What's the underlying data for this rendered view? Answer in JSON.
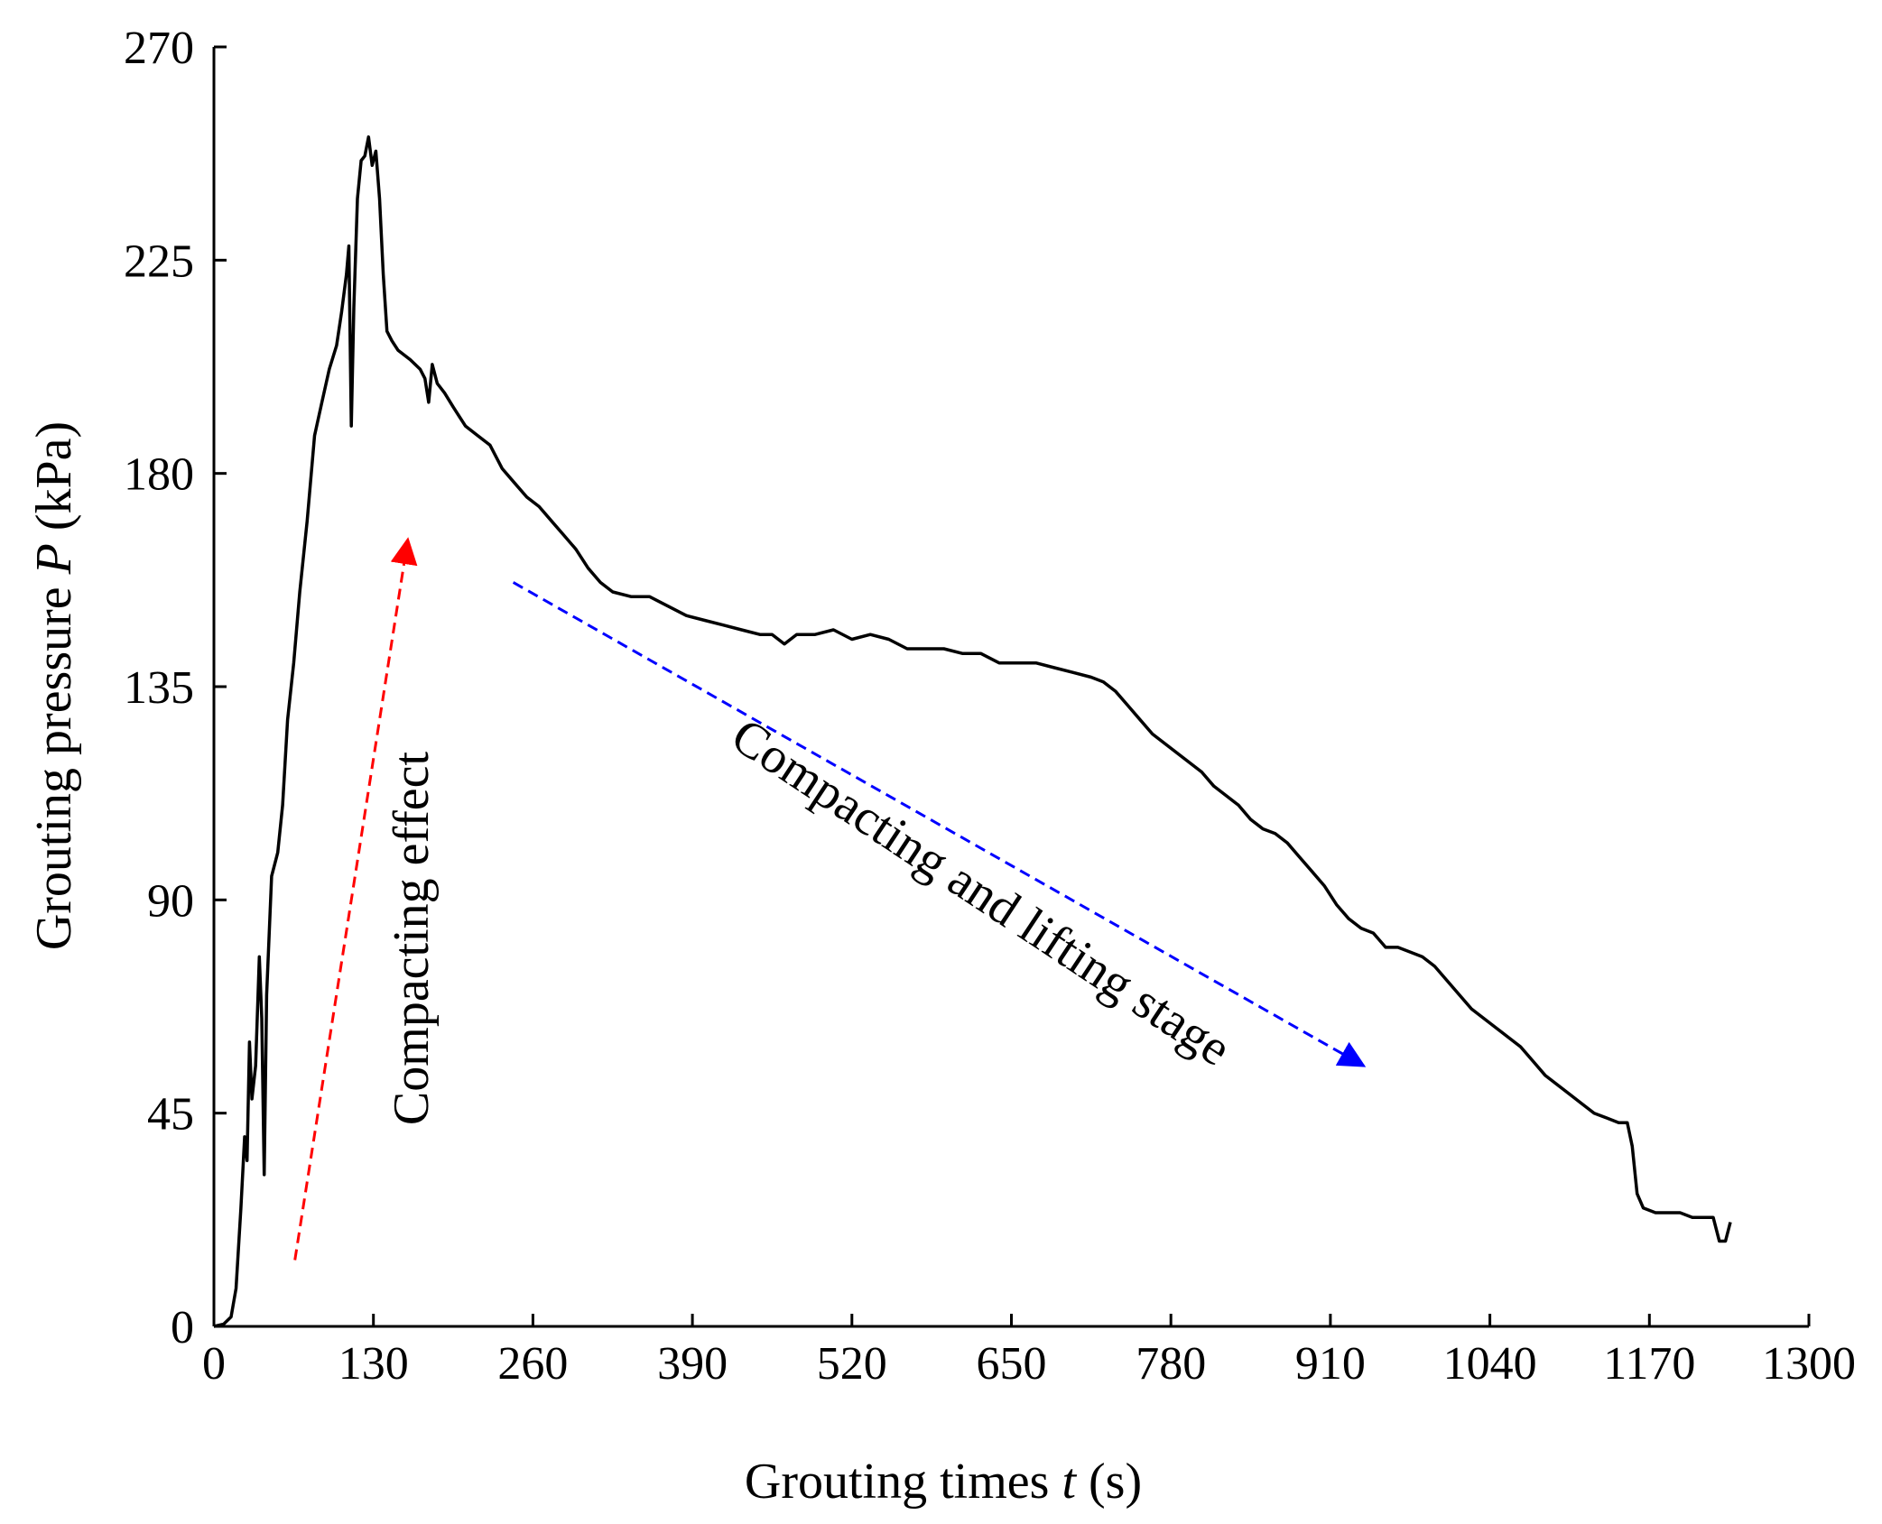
{
  "chart_data": {
    "type": "line",
    "title": "",
    "xlabel": "Grouting times",
    "xlabel_var": "t",
    "xlabel_unit": "(s)",
    "ylabel": "Grouting pressure",
    "ylabel_var": "P",
    "ylabel_unit": "(kPa)",
    "xlim": [
      0,
      1300
    ],
    "ylim": [
      0,
      270
    ],
    "xticks": [
      "0",
      "130",
      "260",
      "390",
      "520",
      "650",
      "780",
      "910",
      "1040",
      "1170",
      "1300"
    ],
    "yticks": [
      "0",
      "45",
      "90",
      "135",
      "180",
      "225",
      "270"
    ],
    "grid": false,
    "series": [
      {
        "name": "Grouting pressure",
        "color": "#000000",
        "points": [
          [
            0,
            0
          ],
          [
            8,
            0.5
          ],
          [
            14,
            2
          ],
          [
            18,
            8
          ],
          [
            22,
            25
          ],
          [
            25,
            40
          ],
          [
            27,
            35
          ],
          [
            29,
            60
          ],
          [
            31,
            48
          ],
          [
            34,
            55
          ],
          [
            37,
            78
          ],
          [
            39,
            65
          ],
          [
            41,
            32
          ],
          [
            43,
            70
          ],
          [
            47,
            95
          ],
          [
            52,
            100
          ],
          [
            56,
            110
          ],
          [
            60,
            128
          ],
          [
            65,
            140
          ],
          [
            70,
            155
          ],
          [
            76,
            170
          ],
          [
            82,
            188
          ],
          [
            88,
            195
          ],
          [
            94,
            202
          ],
          [
            100,
            207
          ],
          [
            104,
            214
          ],
          [
            108,
            222
          ],
          [
            110,
            228
          ],
          [
            112,
            190
          ],
          [
            114,
            215
          ],
          [
            117,
            238
          ],
          [
            120,
            246
          ],
          [
            123,
            247
          ],
          [
            126,
            251
          ],
          [
            129,
            245
          ],
          [
            132,
            248
          ],
          [
            135,
            238
          ],
          [
            138,
            222
          ],
          [
            141,
            210
          ],
          [
            145,
            208
          ],
          [
            150,
            206
          ],
          [
            160,
            204
          ],
          [
            168,
            202
          ],
          [
            172,
            200
          ],
          [
            175,
            195
          ],
          [
            178,
            203
          ],
          [
            182,
            199
          ],
          [
            188,
            197
          ],
          [
            195,
            194
          ],
          [
            205,
            190
          ],
          [
            215,
            188
          ],
          [
            225,
            186
          ],
          [
            235,
            181
          ],
          [
            245,
            178
          ],
          [
            255,
            175
          ],
          [
            265,
            173
          ],
          [
            275,
            170
          ],
          [
            285,
            167
          ],
          [
            295,
            164
          ],
          [
            305,
            160
          ],
          [
            315,
            157
          ],
          [
            325,
            155
          ],
          [
            340,
            154
          ],
          [
            355,
            154
          ],
          [
            370,
            152
          ],
          [
            385,
            150
          ],
          [
            400,
            149
          ],
          [
            415,
            148
          ],
          [
            430,
            147
          ],
          [
            445,
            146
          ],
          [
            455,
            146
          ],
          [
            465,
            144
          ],
          [
            475,
            146
          ],
          [
            490,
            146
          ],
          [
            505,
            147
          ],
          [
            520,
            145
          ],
          [
            535,
            146
          ],
          [
            550,
            145
          ],
          [
            565,
            143
          ],
          [
            580,
            143
          ],
          [
            595,
            143
          ],
          [
            610,
            142
          ],
          [
            625,
            142
          ],
          [
            640,
            140
          ],
          [
            655,
            140
          ],
          [
            670,
            140
          ],
          [
            685,
            139
          ],
          [
            700,
            138
          ],
          [
            715,
            137
          ],
          [
            725,
            136
          ],
          [
            735,
            134
          ],
          [
            745,
            131
          ],
          [
            755,
            128
          ],
          [
            765,
            125
          ],
          [
            775,
            123
          ],
          [
            785,
            121
          ],
          [
            795,
            119
          ],
          [
            805,
            117
          ],
          [
            815,
            114
          ],
          [
            825,
            112
          ],
          [
            835,
            110
          ],
          [
            845,
            107
          ],
          [
            855,
            105
          ],
          [
            865,
            104
          ],
          [
            875,
            102
          ],
          [
            885,
            99
          ],
          [
            895,
            96
          ],
          [
            905,
            93
          ],
          [
            915,
            89
          ],
          [
            925,
            86
          ],
          [
            935,
            84
          ],
          [
            945,
            83
          ],
          [
            955,
            80
          ],
          [
            965,
            80
          ],
          [
            975,
            79
          ],
          [
            985,
            78
          ],
          [
            995,
            76
          ],
          [
            1005,
            73
          ],
          [
            1015,
            70
          ],
          [
            1025,
            67
          ],
          [
            1035,
            65
          ],
          [
            1045,
            63
          ],
          [
            1055,
            61
          ],
          [
            1065,
            59
          ],
          [
            1075,
            56
          ],
          [
            1085,
            53
          ],
          [
            1095,
            51
          ],
          [
            1105,
            49
          ],
          [
            1115,
            47
          ],
          [
            1125,
            45
          ],
          [
            1135,
            44
          ],
          [
            1145,
            43
          ],
          [
            1152,
            43
          ],
          [
            1156,
            38
          ],
          [
            1160,
            28
          ],
          [
            1165,
            25
          ],
          [
            1175,
            24
          ],
          [
            1185,
            24
          ],
          [
            1195,
            24
          ],
          [
            1205,
            23
          ],
          [
            1215,
            23
          ],
          [
            1222,
            23
          ],
          [
            1227,
            18
          ],
          [
            1232,
            18
          ],
          [
            1236,
            22
          ]
        ]
      }
    ],
    "annotations": [
      {
        "text": "Compacting effect",
        "color": "#ff0000",
        "arrow_from": [
          66,
          14
        ],
        "arrow_to": [
          158,
          166
        ]
      },
      {
        "text": "Compacting and lifting stage",
        "color": "#0000ff",
        "arrow_from": [
          244,
          157
        ],
        "arrow_to": [
          937,
          55
        ]
      }
    ]
  }
}
